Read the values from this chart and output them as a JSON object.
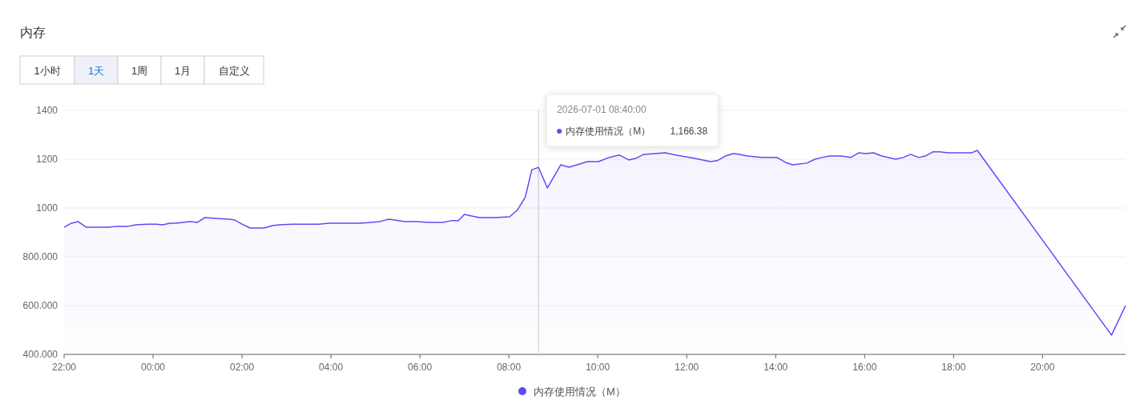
{
  "chart_data": {
    "type": "area",
    "title": "内存",
    "legend": "bottom",
    "grid": "y",
    "marker": "none",
    "line_style": "solid",
    "xlim": [
      "2026-06-30T22:00",
      "2026-07-01T21:52"
    ],
    "xticks": [
      {
        "value": "2026-06-30T22:00",
        "label": "22:00"
      },
      {
        "value": "2026-07-01T00:00",
        "label": "00:00"
      },
      {
        "value": "2026-07-01T02:00",
        "label": "02:00"
      },
      {
        "value": "2026-07-01T04:00",
        "label": "04:00"
      },
      {
        "value": "2026-07-01T06:00",
        "label": "06:00"
      },
      {
        "value": "2026-07-01T08:00",
        "label": "08:00"
      },
      {
        "value": "2026-07-01T10:00",
        "label": "10:00"
      },
      {
        "value": "2026-07-01T12:00",
        "label": "12:00"
      },
      {
        "value": "2026-07-01T14:00",
        "label": "14:00"
      },
      {
        "value": "2026-07-01T16:00",
        "label": "16:00"
      },
      {
        "value": "2026-07-01T18:00",
        "label": "18:00"
      },
      {
        "value": "2026-07-01T20:00",
        "label": "20:00"
      }
    ],
    "ylim": [
      400,
      1400
    ],
    "yticks": [
      {
        "value": 400,
        "label": "400.000"
      },
      {
        "value": 600,
        "label": "600.000"
      },
      {
        "value": 800,
        "label": "800.000"
      },
      1000,
      1200,
      1400
    ],
    "ref_lines": [
      {
        "axis": "x",
        "value": "2026-07-01T08:40",
        "color": "#cccccc"
      }
    ],
    "annotations": [
      "1小时",
      "1天",
      "1周",
      "1月",
      "自定义",
      "2026-07-01 08:40:00",
      "内存使用情况（M）",
      "1,166.38"
    ],
    "series": [
      {
        "name": "内存使用情况（M）",
        "color": "#5b4cf5",
        "x": [
          "2026-06-30T22:00",
          "2026-06-30T22:10",
          "2026-06-30T22:19",
          "2026-06-30T22:30",
          "2026-06-30T22:43",
          "2026-06-30T23:00",
          "2026-06-30T23:10",
          "2026-06-30T23:26",
          "2026-06-30T23:37",
          "2026-06-30T23:52",
          "2026-07-01T00:04",
          "2026-07-01T00:13",
          "2026-07-01T00:23",
          "2026-07-01T00:31",
          "2026-07-01T00:50",
          "2026-07-01T01:00",
          "2026-07-01T01:10",
          "2026-07-01T01:25",
          "2026-07-01T01:43",
          "2026-07-01T01:50",
          "2026-07-01T02:00",
          "2026-07-01T02:11",
          "2026-07-01T02:30",
          "2026-07-01T02:41",
          "2026-07-01T02:50",
          "2026-07-01T03:08",
          "2026-07-01T03:25",
          "2026-07-01T03:44",
          "2026-07-01T03:57",
          "2026-07-01T04:19",
          "2026-07-01T04:40",
          "2026-07-01T04:54",
          "2026-07-01T05:06",
          "2026-07-01T05:10",
          "2026-07-01T05:18",
          "2026-07-01T05:26",
          "2026-07-01T05:40",
          "2026-07-01T05:56",
          "2026-07-01T06:12",
          "2026-07-01T06:31",
          "2026-07-01T06:42",
          "2026-07-01T06:52",
          "2026-07-01T07:00",
          "2026-07-01T07:20",
          "2026-07-01T07:41",
          "2026-07-01T08:01",
          "2026-07-01T08:11",
          "2026-07-01T08:22",
          "2026-07-01T08:31",
          "2026-07-01T08:35",
          "2026-07-01T08:40",
          "2026-07-01T08:52",
          "2026-07-01T09:10",
          "2026-07-01T09:21",
          "2026-07-01T09:32",
          "2026-07-01T09:46",
          "2026-07-01T10:01",
          "2026-07-01T10:15",
          "2026-07-01T10:29",
          "2026-07-01T10:42",
          "2026-07-01T10:51",
          "2026-07-01T11:02",
          "2026-07-01T11:17",
          "2026-07-01T11:31",
          "2026-07-01T11:45",
          "2026-07-01T12:11",
          "2026-07-01T12:32",
          "2026-07-01T12:41",
          "2026-07-01T12:52",
          "2026-07-01T13:03",
          "2026-07-01T13:11",
          "2026-07-01T13:22",
          "2026-07-01T13:41",
          "2026-07-01T14:02",
          "2026-07-01T14:13",
          "2026-07-01T14:23",
          "2026-07-01T14:32",
          "2026-07-01T14:42",
          "2026-07-01T14:53",
          "2026-07-01T15:02",
          "2026-07-01T15:13",
          "2026-07-01T15:29",
          "2026-07-01T15:41",
          "2026-07-01T15:52",
          "2026-07-01T16:01",
          "2026-07-01T16:12",
          "2026-07-01T16:23",
          "2026-07-01T16:42",
          "2026-07-01T16:52",
          "2026-07-01T17:02",
          "2026-07-01T17:13",
          "2026-07-01T17:22",
          "2026-07-01T17:32",
          "2026-07-01T17:41",
          "2026-07-01T17:52",
          "2026-07-01T18:02",
          "2026-07-01T18:14",
          "2026-07-01T18:24",
          "2026-07-01T18:32",
          "2026-07-01T21:33",
          "2026-07-01T21:52"
        ],
        "values": [
          921,
          938,
          944,
          921,
          921,
          921,
          925,
          925,
          931,
          934,
          934,
          931,
          938,
          938,
          944,
          941,
          961,
          957,
          954,
          951,
          934,
          918,
          918,
          928,
          931,
          934,
          934,
          934,
          938,
          938,
          938,
          941,
          944,
          948,
          954,
          951,
          944,
          944,
          941,
          941,
          948,
          948,
          974,
          961,
          961,
          964,
          990,
          1043,
          1157,
          1161,
          1166.38,
          1082,
          1177,
          1167,
          1177,
          1190,
          1190,
          1207,
          1217,
          1197,
          1203,
          1220,
          1223,
          1226,
          1217,
          1203,
          1190,
          1194,
          1213,
          1223,
          1220,
          1213,
          1207,
          1207,
          1187,
          1177,
          1180,
          1184,
          1200,
          1207,
          1213,
          1213,
          1207,
          1226,
          1223,
          1226,
          1213,
          1200,
          1207,
          1220,
          1207,
          1213,
          1230,
          1230,
          1226,
          1226,
          1226,
          1226,
          1236,
          479,
          600
        ]
      }
    ]
  }
}
